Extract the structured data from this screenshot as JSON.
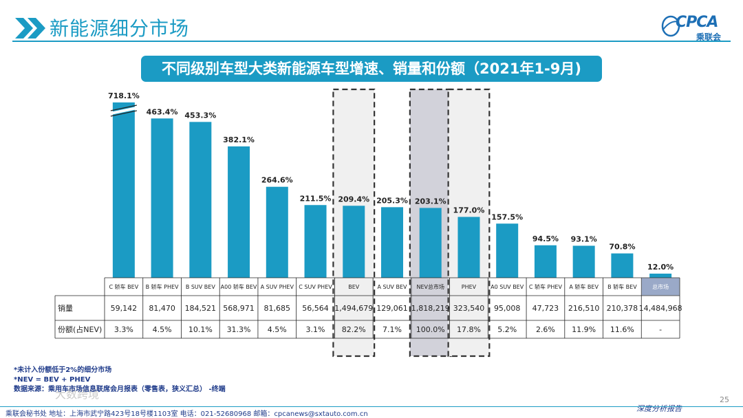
{
  "header": {
    "title": "新能源细分市场",
    "logo_text": "CPCA",
    "logo_sub": "乘联会"
  },
  "banner": "不同级别车型大类新能源车型增速、销量和份额（2021年1-9月)",
  "chart_data": {
    "type": "bar",
    "categories": [
      "C 轿车 BEV",
      "B 轿车 PHEV",
      "B SUV BEV",
      "A00 轿车 BEV",
      "A SUV PHEV",
      "C SUV PHEV",
      "BEV",
      "A SUV BEV",
      "NEV总市场",
      "PHEV",
      "A0 SUV BEV",
      "C 轿车 PHEV",
      "A 轿车 BEV",
      "B 轿车 BEV",
      "总市场"
    ],
    "values": [
      718.1,
      463.4,
      453.3,
      382.1,
      264.6,
      211.5,
      209.4,
      205.3,
      203.1,
      177.0,
      157.5,
      94.5,
      93.1,
      70.8,
      12.0
    ],
    "value_labels": [
      "718.1%",
      "463.4%",
      "453.3%",
      "382.1%",
      "264.6%",
      "211.5%",
      "209.4%",
      "205.3%",
      "203.1%",
      "177.0%",
      "157.5%",
      "94.5%",
      "93.1%",
      "70.8%",
      "12.0%"
    ],
    "axis_break": [
      true,
      false,
      false,
      false,
      false,
      false,
      false,
      false,
      false,
      false,
      false,
      false,
      false,
      false,
      false
    ],
    "highlight_boxes": [
      "BEV",
      "NEV总市场",
      "PHEV"
    ],
    "shaded_box": "NEV总市场",
    "colors": {
      "bar": "#1b9bc4",
      "total_header": "#9aa9c8",
      "box_fill": "#f0f0f0",
      "nev_box_fill": "#d2d2da"
    },
    "table": {
      "row_labels": [
        "销量",
        "份额(占NEV)"
      ],
      "sales": [
        "59,142",
        "81,470",
        "184,521",
        "568,971",
        "81,685",
        "56,564",
        "1,494,679",
        "129,061",
        "1,818,219",
        "323,540",
        "95,008",
        "47,723",
        "216,510",
        "210,378",
        "14,484,968"
      ],
      "share": [
        "3.3%",
        "4.5%",
        "10.1%",
        "31.3%",
        "4.5%",
        "3.1%",
        "82.2%",
        "7.1%",
        "100.0%",
        "17.8%",
        "5.2%",
        "2.6%",
        "11.9%",
        "11.6%",
        "-"
      ]
    }
  },
  "notes": [
    "*未计入份额低于2%的细分市场",
    "*NEV = BEV + PHEV",
    "数据来源：乘用车市场信息联席会月报表（零售表，狭义汇总）  -终端"
  ],
  "footer": "乘联会秘书处    地址：上海市武宁路423号18号楼1103室    电话：021-52680968    邮箱：cpcanews@sxtauto.com.cn",
  "tagline": "深度分析报告",
  "page_number": "25",
  "watermark": "大数跨境"
}
